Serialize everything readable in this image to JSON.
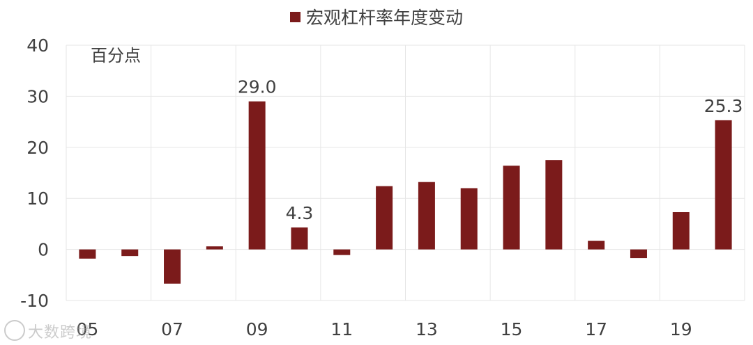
{
  "chart_data": {
    "type": "bar",
    "legend": {
      "label": "宏观杠杆率年度变动",
      "position": "top-center"
    },
    "unit_label": "百分点",
    "categories": [
      "05",
      "06",
      "07",
      "08",
      "09",
      "10",
      "11",
      "12",
      "13",
      "14",
      "15",
      "16",
      "17",
      "18",
      "19",
      "20"
    ],
    "x_tick_labels": [
      "05",
      "07",
      "09",
      "11",
      "13",
      "15",
      "17",
      "19"
    ],
    "values": [
      -1.8,
      -1.3,
      -6.7,
      0.6,
      29.0,
      4.3,
      -1.1,
      12.4,
      13.2,
      12.0,
      16.4,
      17.5,
      1.7,
      -1.7,
      7.3,
      25.3
    ],
    "data_labels": {
      "4": "29.0",
      "5": "4.3",
      "15": "25.3"
    },
    "y_ticks": [
      40,
      30,
      20,
      10,
      0,
      -10
    ],
    "ylim": [
      -10,
      40
    ],
    "grid": true,
    "colors": {
      "bar": "#7b1b1b",
      "grid": "#e6e6e6",
      "text": "#404040"
    }
  },
  "watermark": "大数跨境"
}
